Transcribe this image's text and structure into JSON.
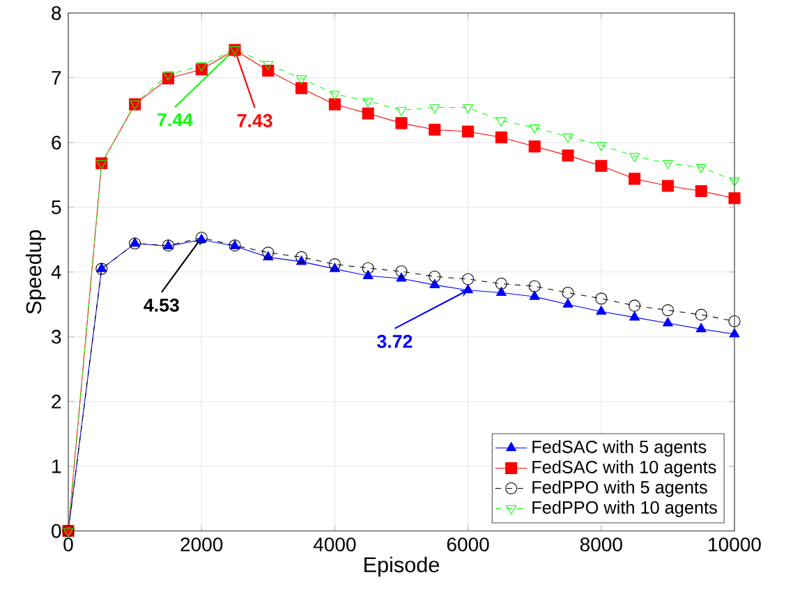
{
  "chart_data": {
    "type": "line",
    "xlabel": "Episode",
    "ylabel": "Speedup",
    "x": [
      0,
      500,
      1000,
      1500,
      2000,
      2500,
      3000,
      3500,
      4000,
      4500,
      5000,
      5500,
      6000,
      6500,
      7000,
      7500,
      8000,
      8500,
      9000,
      9500,
      10000
    ],
    "series": [
      {
        "name": "FedSAC with 5 agents",
        "color": "#0000ff",
        "marker": "triangle",
        "line_style": "solid",
        "values": [
          0,
          4.05,
          4.44,
          4.4,
          4.5,
          4.4,
          4.23,
          4.16,
          4.05,
          3.94,
          3.9,
          3.8,
          3.72,
          3.68,
          3.62,
          3.5,
          3.39,
          3.3,
          3.21,
          3.12,
          3.04
        ]
      },
      {
        "name": "FedSAC with 10 agents",
        "color": "#ff0000",
        "marker": "square",
        "line_style": "solid",
        "values": [
          0,
          5.68,
          6.59,
          6.99,
          7.13,
          7.43,
          7.11,
          6.84,
          6.59,
          6.45,
          6.3,
          6.2,
          6.17,
          6.08,
          5.94,
          5.8,
          5.64,
          5.44,
          5.33,
          5.25,
          5.14
        ]
      },
      {
        "name": "FedPPO with 5 agents",
        "color": "#000000",
        "marker": "circle",
        "line_style": "dashed",
        "values": [
          0,
          4.05,
          4.44,
          4.41,
          4.53,
          4.41,
          4.3,
          4.23,
          4.12,
          4.06,
          4.01,
          3.93,
          3.89,
          3.82,
          3.78,
          3.68,
          3.59,
          3.48,
          3.41,
          3.34,
          3.24
        ]
      },
      {
        "name": "FedPPO with 10 agents",
        "color": "#00ff00",
        "marker": "triangle",
        "line_style": "dashed",
        "values": [
          0,
          5.68,
          6.6,
          7.05,
          7.19,
          7.44,
          7.21,
          6.99,
          6.75,
          6.64,
          6.5,
          6.54,
          6.54,
          6.34,
          6.23,
          6.09,
          5.96,
          5.79,
          5.68,
          5.62,
          5.41
        ]
      }
    ],
    "annotations": [
      {
        "text": "7.44",
        "x": 2500,
        "y": 7.44
      },
      {
        "text": "7.43",
        "x": 2500,
        "y": 7.43
      },
      {
        "text": "4.53",
        "x": 2000,
        "y": 4.53
      },
      {
        "text": "3.72",
        "x": 6000,
        "y": 3.72
      }
    ],
    "xlim": [
      0,
      10000
    ],
    "xticks": [
      0,
      2000,
      4000,
      6000,
      8000,
      10000
    ],
    "ylim": [
      0,
      8
    ],
    "yticks": [
      0,
      1,
      2,
      3,
      4,
      5,
      6,
      7,
      8
    ],
    "grid": true,
    "legend": "bottom right"
  }
}
